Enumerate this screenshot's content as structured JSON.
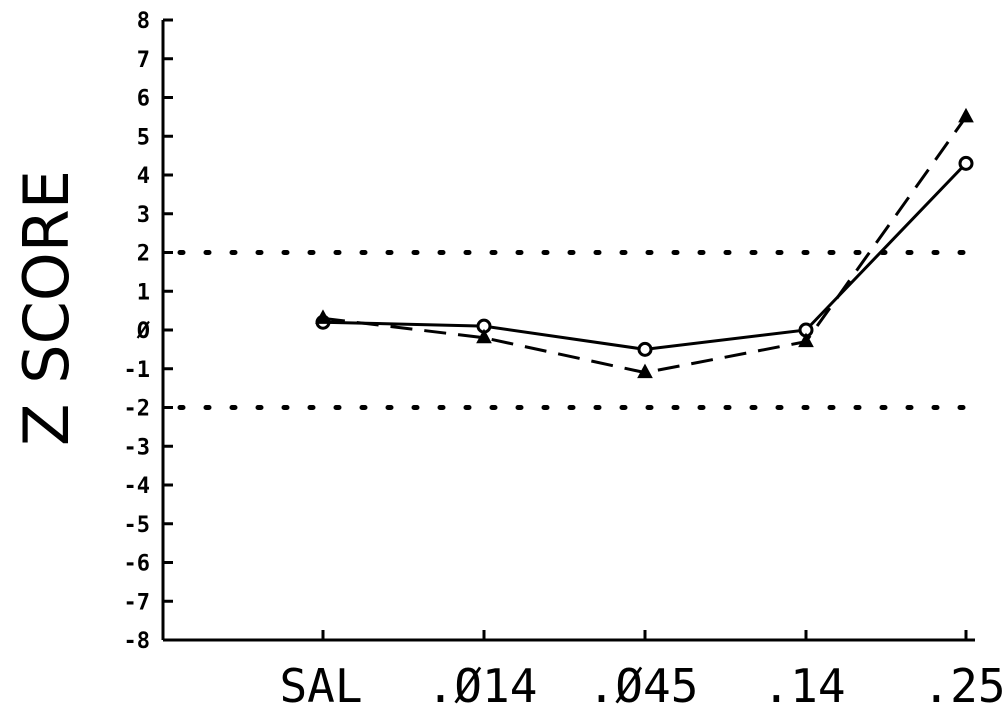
{
  "chart_data": {
    "type": "line",
    "title": "",
    "xlabel": "",
    "ylabel": "Z SCORE",
    "categories": [
      "SAL",
      ".Ø14",
      ".Ø45",
      ".14",
      ".25"
    ],
    "y_ticks": [
      "8",
      "7",
      "6",
      "5",
      "4",
      "3",
      "2",
      "1",
      "Ø",
      "-1",
      "-2",
      "-3",
      "-4",
      "-5",
      "-6",
      "-7",
      "-8"
    ],
    "ylim": [
      -8,
      8
    ],
    "reference_lines": [
      2,
      -2
    ],
    "series": [
      {
        "marker": "circle",
        "line_style": "solid",
        "values": [
          0.2,
          0.1,
          -0.5,
          0.0,
          4.3
        ]
      },
      {
        "marker": "triangle",
        "line_style": "dashed",
        "values": [
          0.3,
          -0.2,
          -1.1,
          -0.3,
          5.5
        ]
      }
    ],
    "grid": false,
    "legend": "none"
  }
}
